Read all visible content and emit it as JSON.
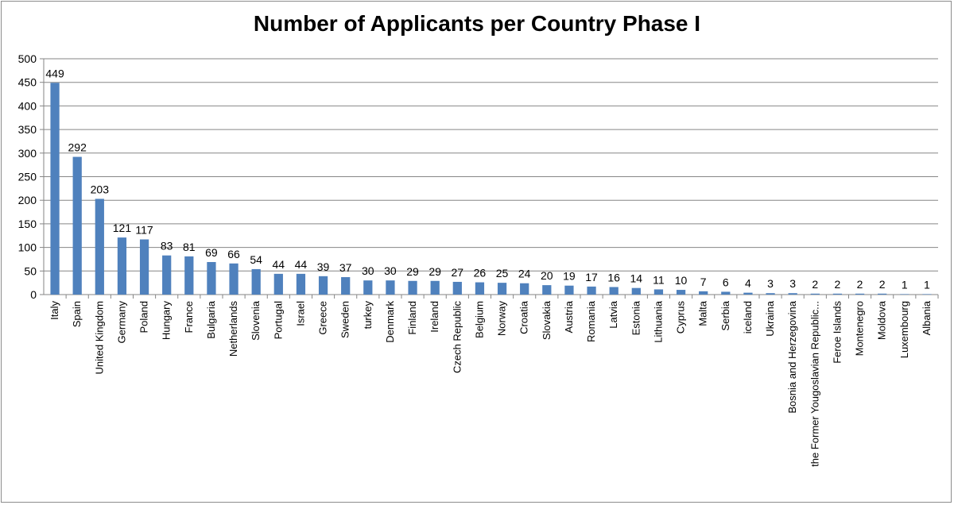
{
  "chart_data": {
    "type": "bar",
    "title": "Number of Applicants per Country Phase I",
    "xlabel": "",
    "ylabel": "",
    "ylim": [
      0,
      500
    ],
    "yticks": [
      0,
      50,
      100,
      150,
      200,
      250,
      300,
      350,
      400,
      450,
      500
    ],
    "grid": true,
    "legend": "none",
    "bar_color": "#4f81bd",
    "categories": [
      "Italy",
      "Spain",
      "United Kingdom",
      "Germany",
      "Poland",
      "Hungary",
      "France",
      "Bulgaria",
      "Netherlands",
      "Slovenia",
      "Portugal",
      "Israel",
      "Greece",
      "Sweden",
      "turkey",
      "Denmark",
      "Finland",
      "Ireland",
      "Czech Republic",
      "Belgium",
      "Norway",
      "Croatia",
      "Slovakia",
      "Austria",
      "Romania",
      "Latvia",
      "Estonia",
      "Lithuania",
      "Cyprus",
      "Malta",
      "Serbia",
      "iceland",
      "Ukraina",
      "Bosnia and Herzegovina",
      "the Former Yougoslavian Republic...",
      "Feroe Islands",
      "Montenegro",
      "Moldova",
      "Luxembourg",
      "Albania"
    ],
    "values": [
      449,
      292,
      203,
      121,
      117,
      83,
      81,
      69,
      66,
      54,
      44,
      44,
      39,
      37,
      30,
      30,
      29,
      29,
      27,
      26,
      25,
      24,
      20,
      19,
      17,
      16,
      14,
      11,
      10,
      7,
      6,
      4,
      3,
      3,
      2,
      2,
      2,
      2,
      1,
      1
    ]
  }
}
